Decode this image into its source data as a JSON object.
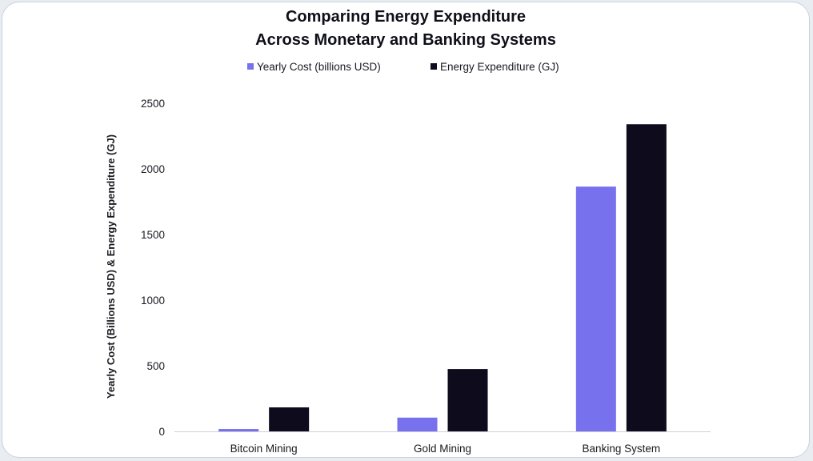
{
  "chart_data": {
    "type": "bar",
    "title_lines": [
      "Comparing Energy Expenditure",
      "Across Monetary and Banking Systems"
    ],
    "categories": [
      "Bitcoin Mining",
      "Gold Mining",
      "Banking System"
    ],
    "series": [
      {
        "name": "Yearly Cost (billions USD)",
        "color": "#7771ee",
        "values": [
          18,
          105,
          1865
        ]
      },
      {
        "name": "Energy Expenditure (GJ)",
        "color": "#0d0b1c",
        "values": [
          183,
          475,
          2340
        ]
      }
    ],
    "ylabel": "Yearly Cost (Billions USD) & Energy Expenditure (GJ)",
    "xlabel": "",
    "ylim": [
      0,
      2500
    ],
    "yticks": [
      0,
      500,
      1000,
      1500,
      2000,
      2500
    ],
    "grid": false,
    "legend_position": "top-center"
  }
}
